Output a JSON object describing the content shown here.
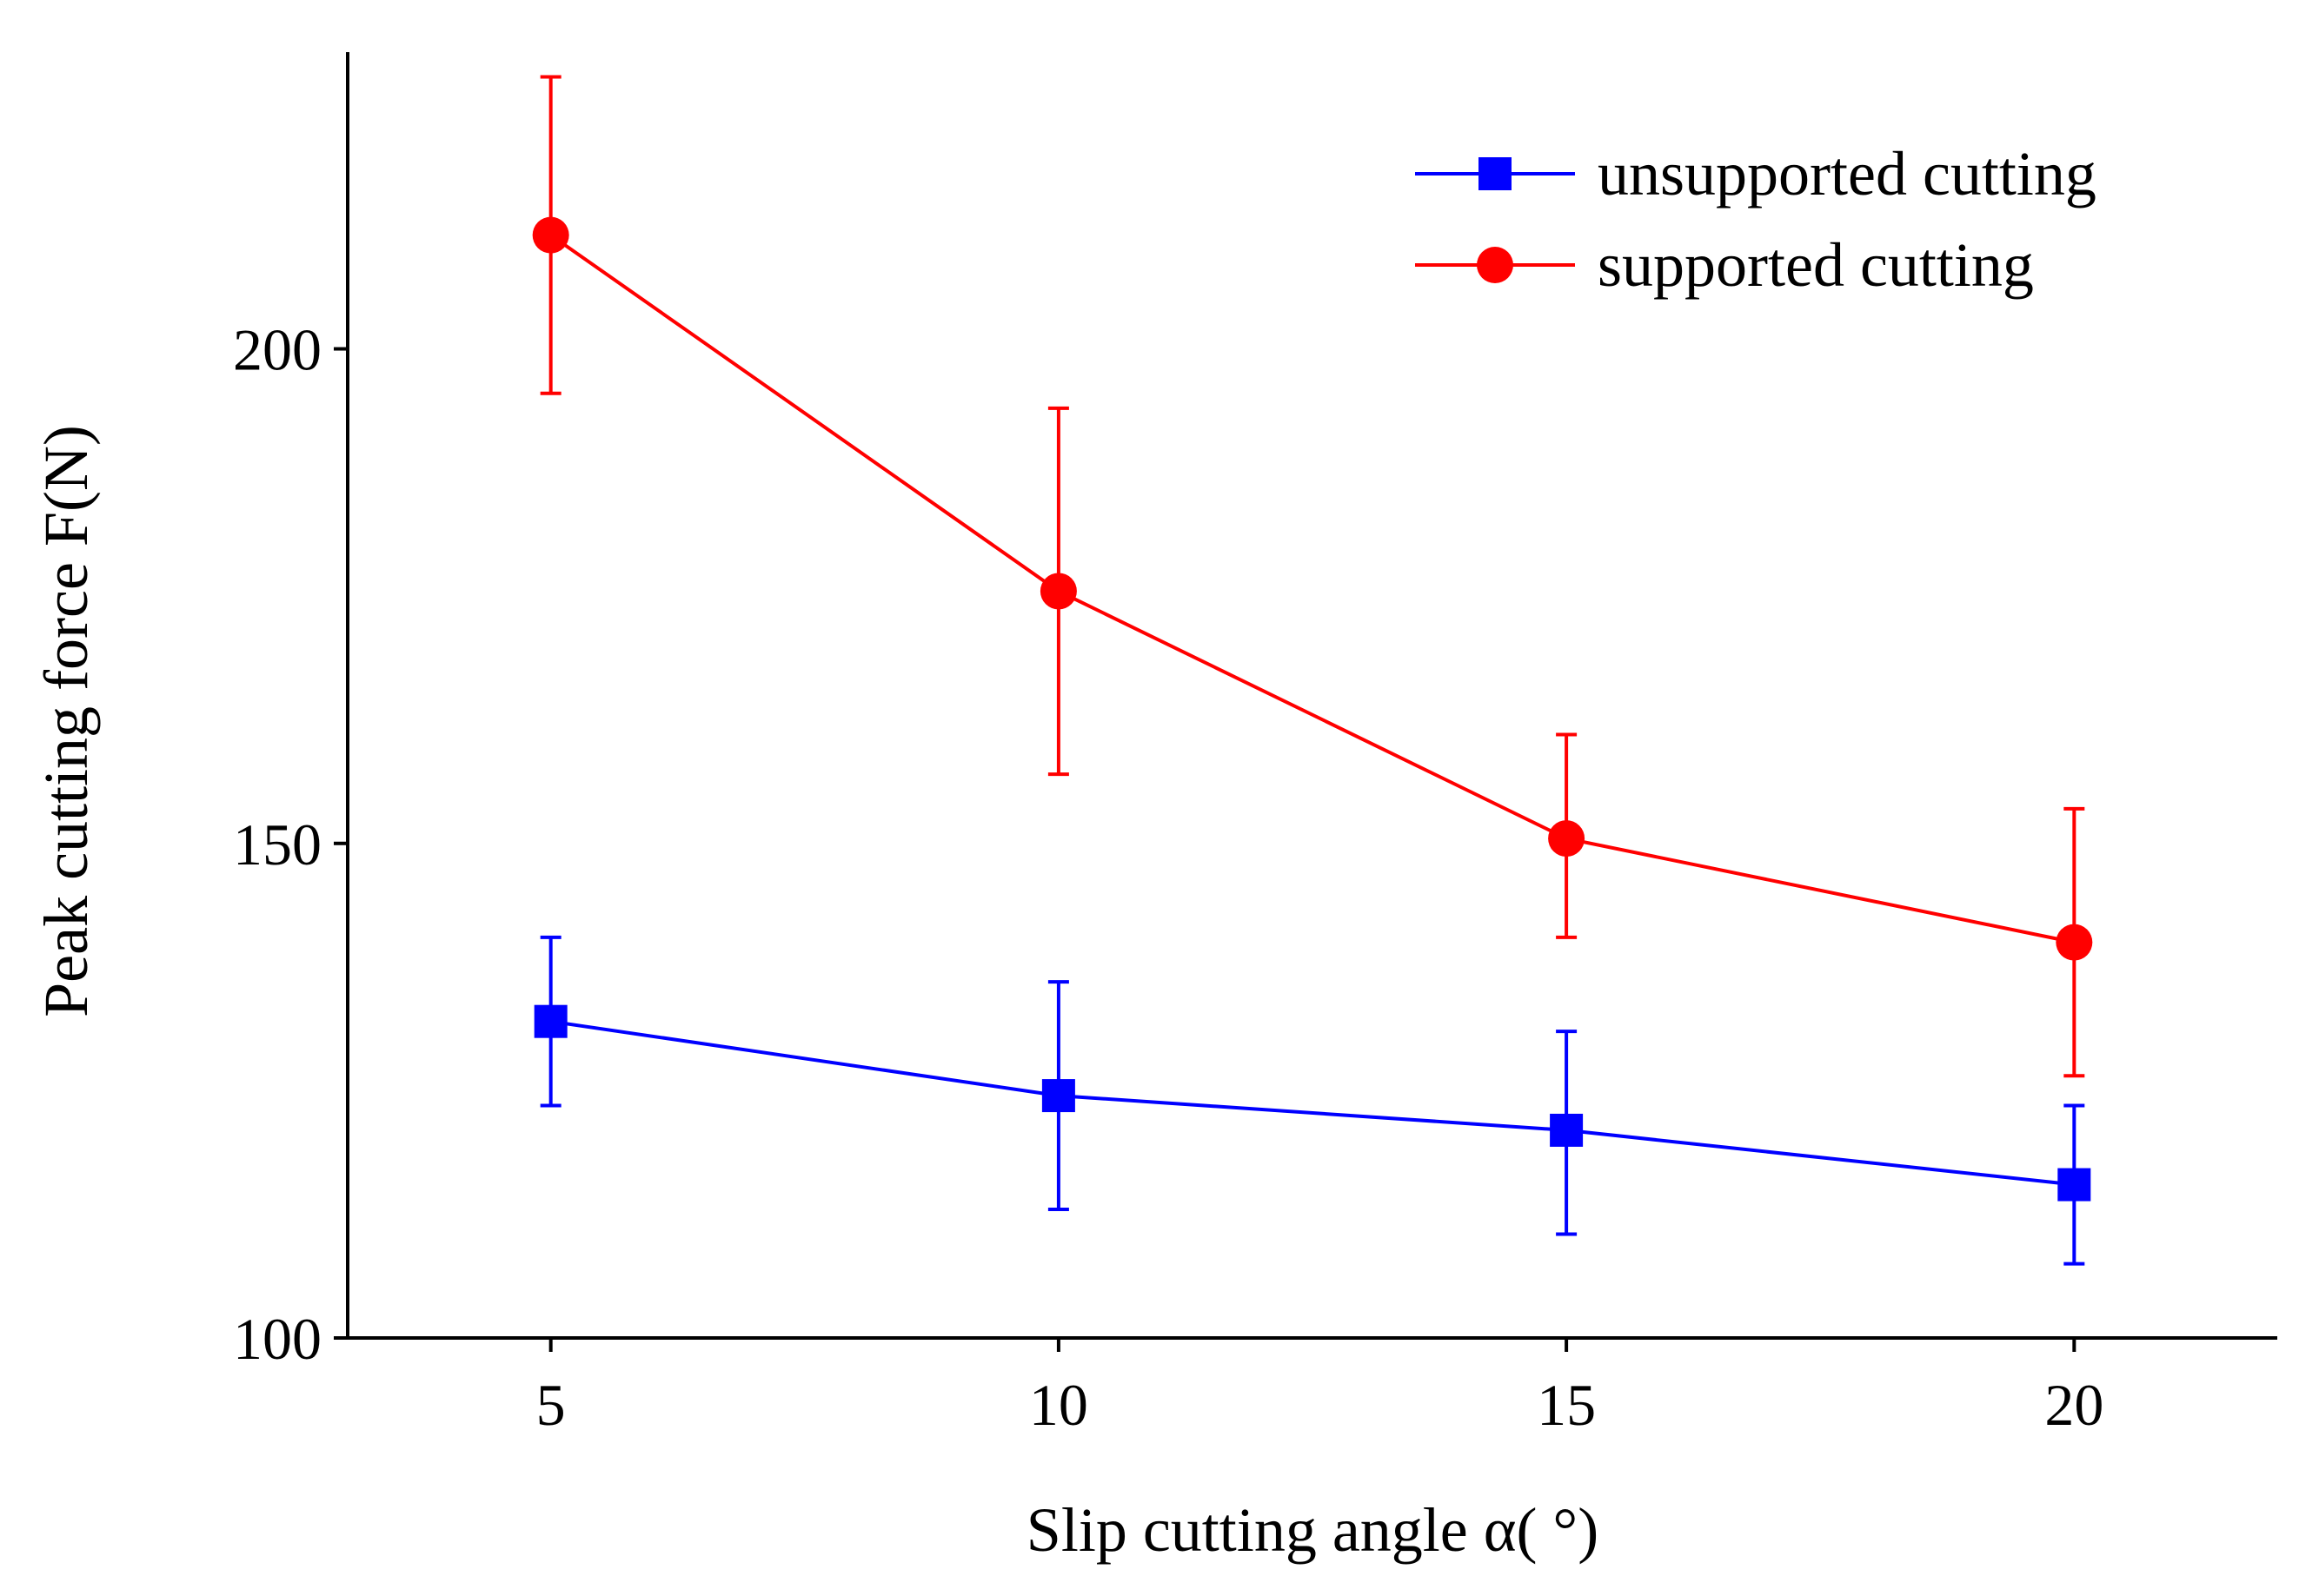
{
  "chart_data": {
    "type": "line",
    "title": "",
    "xlabel": "Slip cutting angle α( °)",
    "ylabel": "Peak cutting force F(N)",
    "xlim": [
      3,
      22
    ],
    "ylim": [
      100,
      230
    ],
    "x_ticks": [
      5,
      10,
      15,
      20
    ],
    "y_ticks": [
      100,
      150,
      200
    ],
    "x_tick_labels": [
      "5",
      "10",
      "15",
      "20"
    ],
    "y_tick_labels": [
      "100",
      "150",
      "200"
    ],
    "x": [
      5,
      10,
      15,
      20
    ],
    "grid": false,
    "legend_position": "top-right",
    "error_bars": true,
    "series": [
      {
        "name": "unsupported cutting",
        "color": "#0000ff",
        "marker": "square",
        "values": [
          132,
          124.5,
          121,
          115.5
        ],
        "error_low": [
          123.5,
          113,
          110.5,
          107.5
        ],
        "error_high": [
          140.5,
          136,
          131,
          123.5
        ]
      },
      {
        "name": "supported cutting",
        "color": "#ff0000",
        "marker": "circle",
        "values": [
          211.5,
          175.5,
          150.5,
          140
        ],
        "error_low": [
          195.5,
          157,
          140.5,
          126.5
        ],
        "error_high": [
          227.5,
          194,
          161,
          153.5
        ]
      }
    ]
  }
}
